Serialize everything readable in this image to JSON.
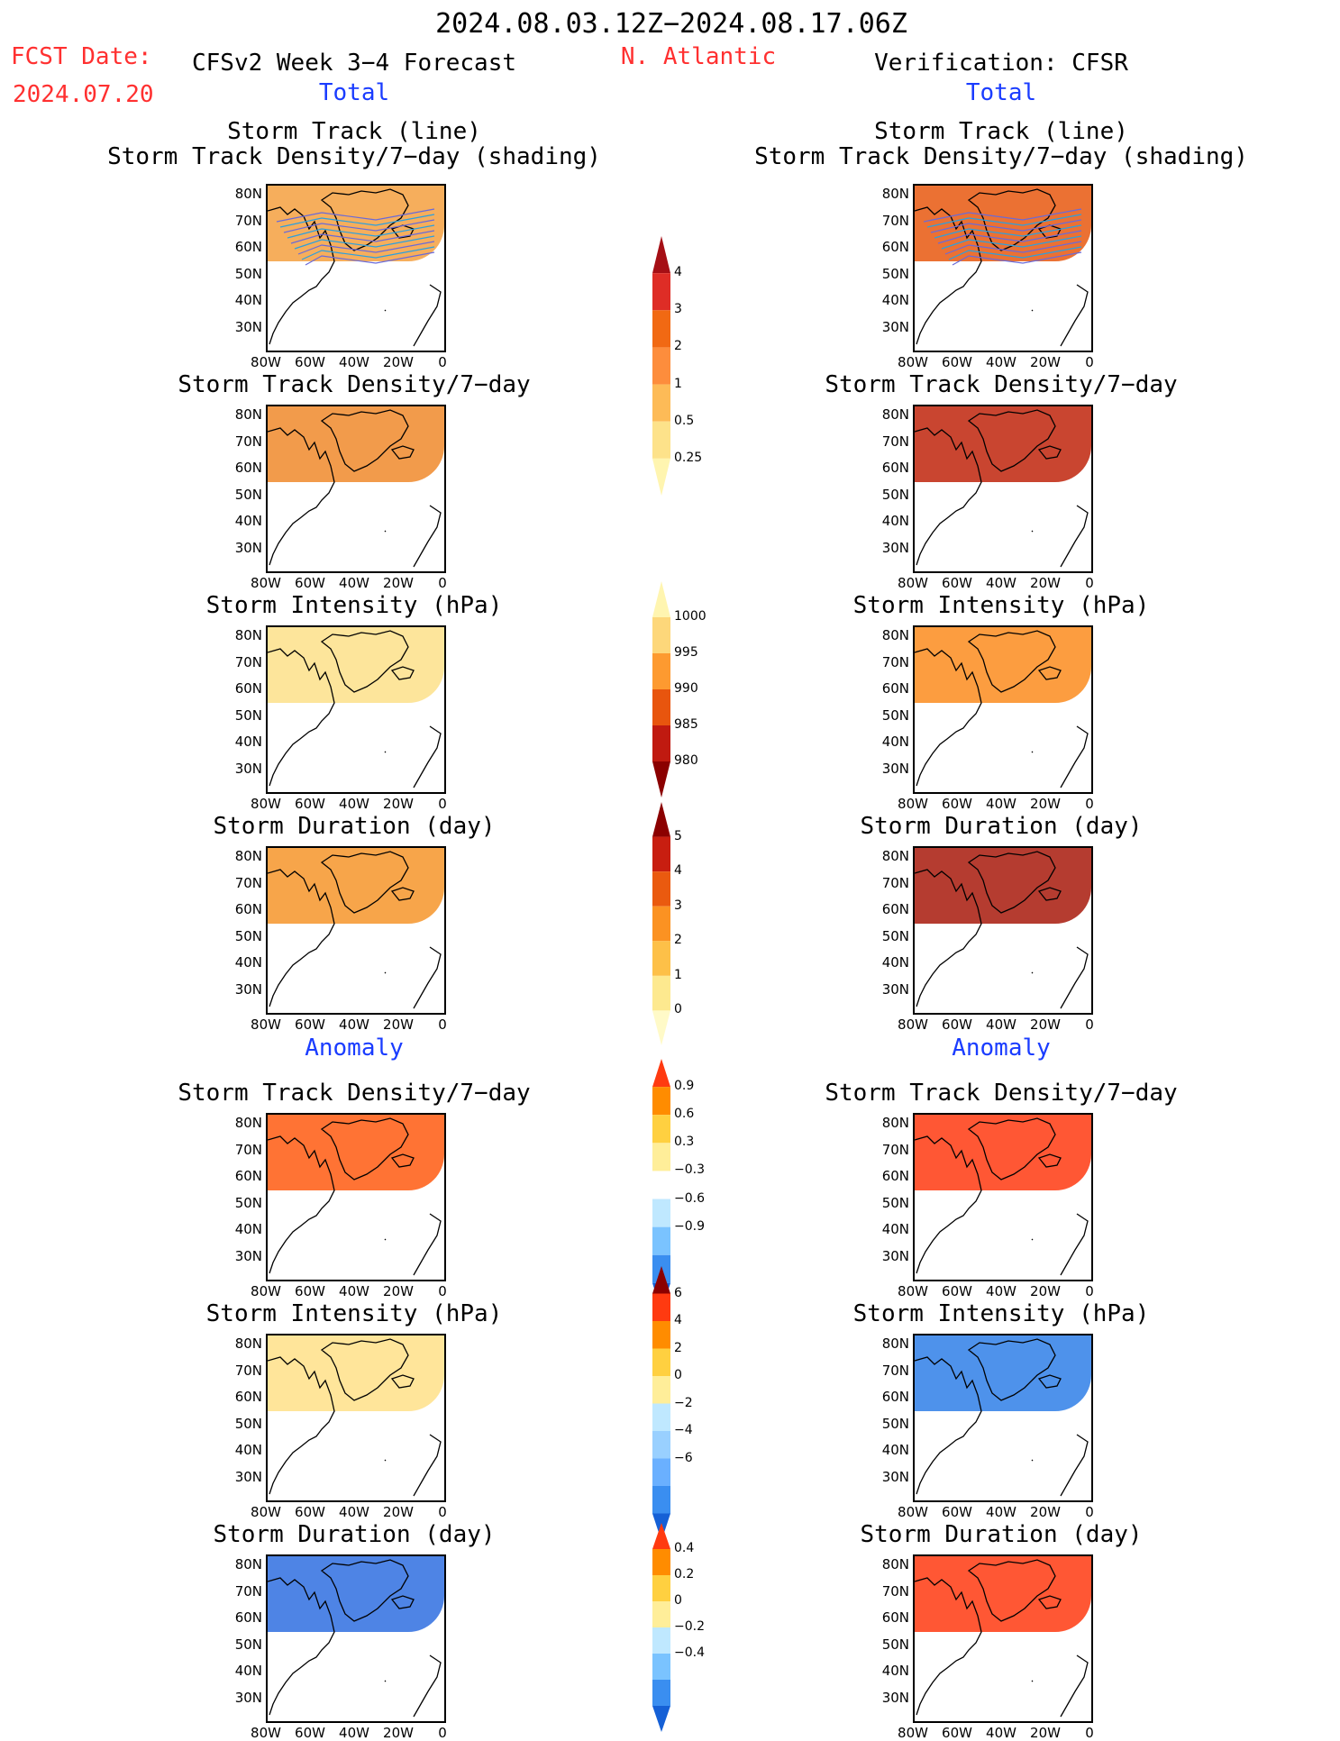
{
  "header": {
    "date_range": "2024.08.03.12Z−2024.08.17.06Z",
    "fcst_label": "FCST Date:",
    "fcst_date": "2024.07.20",
    "forecast_title": "CFSv2 Week 3−4 Forecast",
    "region": "N. Atlantic",
    "verification": "Verification: CFSR"
  },
  "sections": {
    "total": "Total",
    "anomaly": "Anomaly"
  },
  "panel_titles": {
    "track": "Storm Track (line)\nStorm Track Density/7−day (shading)",
    "density": "Storm Track Density/7−day",
    "intensity": "Storm Intensity (hPa)",
    "duration": "Storm Duration (day)"
  },
  "axes": {
    "lat_ticks": [
      "80N",
      "70N",
      "60N",
      "50N",
      "40N",
      "30N"
    ],
    "lon_ticks": [
      "80W",
      "60W",
      "40W",
      "20W",
      "0"
    ]
  },
  "colorbars": [
    {
      "id": "density",
      "labels": [
        "4",
        "3",
        "2",
        "1",
        "0.5",
        "0.25"
      ],
      "colors": [
        "#a50f15",
        "#de2d26",
        "#f16913",
        "#fd8d3c",
        "#fdbb57",
        "#fde28a",
        "#fff5b0"
      ]
    },
    {
      "id": "intensity",
      "labels": [
        "1000",
        "995",
        "990",
        "985",
        "980"
      ],
      "colors": [
        "#fff5b0",
        "#fdd77a",
        "#fd9a30",
        "#e8550e",
        "#c01a10",
        "#8b0000"
      ]
    },
    {
      "id": "duration",
      "labels": [
        "5",
        "4",
        "3",
        "2",
        "1",
        "0"
      ],
      "colors": [
        "#8b0000",
        "#c81e10",
        "#ea5a0f",
        "#fb9222",
        "#fdc048",
        "#fde98f",
        "#fffac8"
      ]
    },
    {
      "id": "density-anom",
      "labels": [
        "0.9",
        "0.6",
        "0.3",
        "−0.3",
        "−0.6",
        "−0.9"
      ],
      "colors": [
        "#ff3a10",
        "#ff8c00",
        "#ffd040",
        "#ffee99",
        "#ffffff",
        "#bfe8ff",
        "#7ac3ff",
        "#3a8ef0",
        "#1560d6"
      ]
    },
    {
      "id": "intensity-anom",
      "labels": [
        "6",
        "4",
        "2",
        "0",
        "−2",
        "−4",
        "−6"
      ],
      "colors": [
        "#8b0000",
        "#ff3a10",
        "#ff8c00",
        "#ffd040",
        "#ffee99",
        "#bfe8ff",
        "#99d0ff",
        "#6ab0ff",
        "#3a8ef0",
        "#1560d6"
      ]
    },
    {
      "id": "duration-anom",
      "labels": [
        "0.4",
        "0.2",
        "0",
        "−0.2",
        "−0.4"
      ],
      "colors": [
        "#ff3a10",
        "#ff8c00",
        "#ffd040",
        "#ffee99",
        "#bfe8ff",
        "#7ac3ff",
        "#3a8ef0",
        "#1560d6"
      ]
    }
  ],
  "panels": [
    {
      "col": "forecast",
      "type": "track",
      "fill_color": "#f4a040",
      "has_tracks": true
    },
    {
      "col": "verification",
      "type": "track",
      "fill_color": "#e8580f",
      "has_tracks": true
    },
    {
      "col": "forecast",
      "type": "density",
      "fill_color": "#f08a2c"
    },
    {
      "col": "verification",
      "type": "density",
      "fill_color": "#c0240c"
    },
    {
      "col": "forecast",
      "type": "intensity",
      "fill_color": "#fde08a"
    },
    {
      "col": "verification",
      "type": "intensity",
      "fill_color": "#fb8c1e"
    },
    {
      "col": "forecast",
      "type": "duration",
      "fill_color": "#f6952a"
    },
    {
      "col": "verification",
      "type": "duration",
      "fill_color": "#a81a0c"
    },
    {
      "col": "forecast",
      "type": "density-anom",
      "fill_color": "#ff5a10"
    },
    {
      "col": "verification",
      "type": "density-anom",
      "fill_color": "#ff3a10"
    },
    {
      "col": "forecast",
      "type": "intensity-anom",
      "fill_color": "#ffe088"
    },
    {
      "col": "verification",
      "type": "intensity-anom",
      "fill_color": "#2f7fe8"
    },
    {
      "col": "forecast",
      "type": "duration-anom",
      "fill_color": "#2f6fe0"
    },
    {
      "col": "verification",
      "type": "duration-anom",
      "fill_color": "#ff3a10"
    }
  ]
}
